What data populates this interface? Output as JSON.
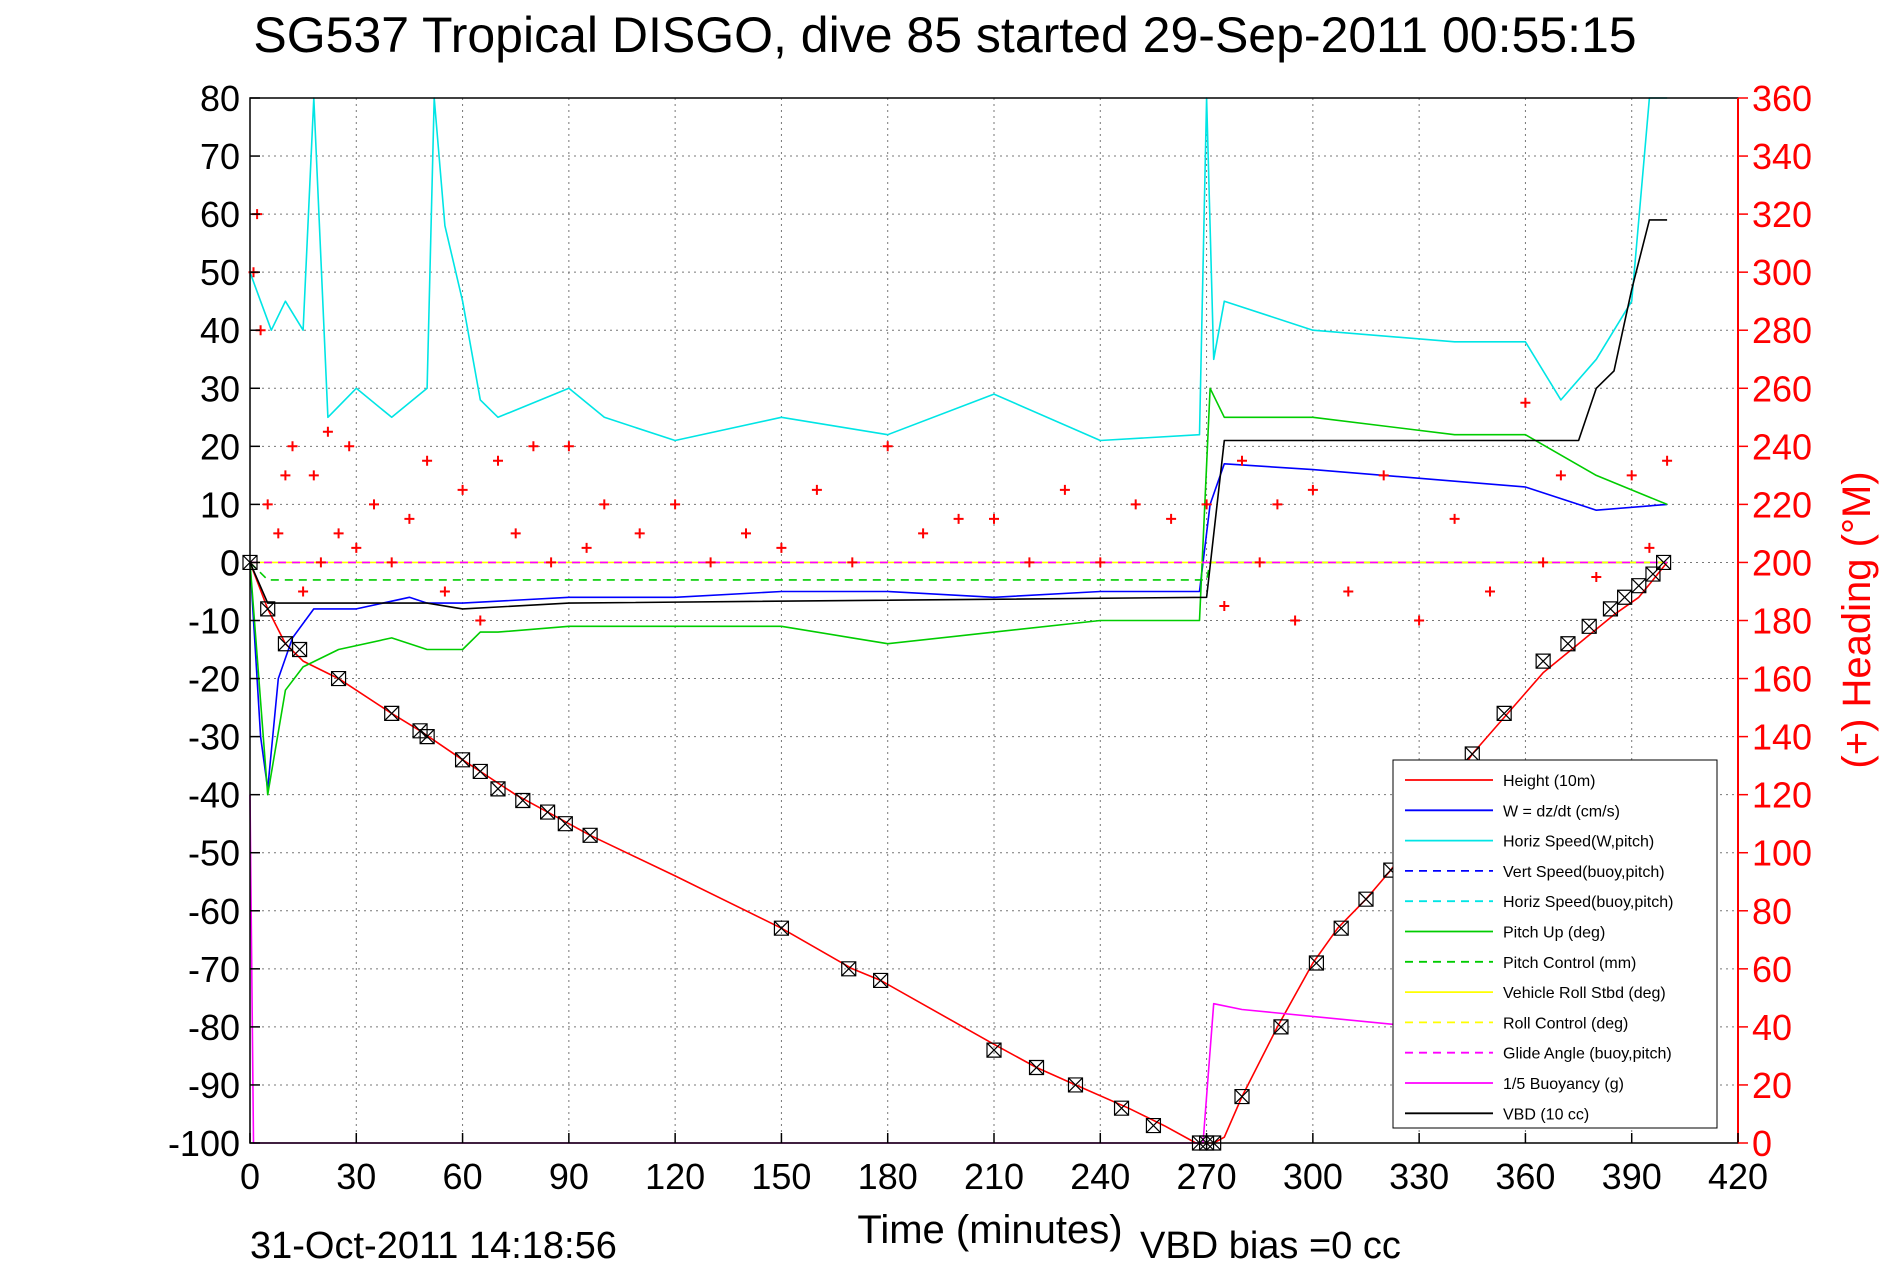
{
  "chart_data": {
    "type": "line",
    "title": "SG537 Tropical DISGO, dive 85 started 29-Sep-2011 00:55:15",
    "xlabel": "Time (minutes)",
    "ylabel": "",
    "y2label": "(+) Heading (°M)",
    "xlim": [
      0,
      420
    ],
    "ylim": [
      -100,
      80
    ],
    "y2lim": [
      0,
      360
    ],
    "x_ticks": [
      0,
      30,
      60,
      90,
      120,
      150,
      180,
      210,
      240,
      270,
      300,
      330,
      360,
      390,
      420
    ],
    "y_ticks": [
      -100,
      -90,
      -80,
      -70,
      -60,
      -50,
      -40,
      -30,
      -20,
      -10,
      0,
      10,
      20,
      30,
      40,
      50,
      60,
      70,
      80
    ],
    "y2_ticks": [
      0,
      20,
      40,
      60,
      80,
      100,
      120,
      140,
      160,
      180,
      200,
      220,
      240,
      260,
      280,
      300,
      320,
      340,
      360
    ],
    "grid": true,
    "legend_position": "bottom-right",
    "footer_date": "31-Oct-2011 14:18:56",
    "footer_note": "VBD bias =0 cc",
    "colors": {
      "axis_right": "#ff0000",
      "height": "#ff0000",
      "w": "#0000ff",
      "horiz": "#00e5e5",
      "pitch": "#00cc00",
      "roll": "#ffff00",
      "glide": "#ff00ff",
      "vbd": "#000000"
    },
    "series": [
      {
        "name": "Height (10m)",
        "color": "#ff0000",
        "style": "solid",
        "x": [
          0,
          5,
          10,
          15,
          25,
          40,
          48,
          60,
          75,
          90,
          96,
          120,
          150,
          170,
          178,
          210,
          222,
          233,
          248,
          258,
          267,
          270,
          272,
          275,
          280,
          290,
          300,
          307,
          315,
          322,
          335,
          345,
          355,
          365,
          375,
          385,
          392,
          396,
          400
        ],
        "y": [
          0,
          -8,
          -14,
          -17,
          -20,
          -26,
          -29,
          -34,
          -40,
          -45,
          -47,
          -54,
          -63,
          -70,
          -72,
          -83,
          -87,
          -90,
          -94,
          -97,
          -100,
          -100,
          -100,
          -99,
          -92,
          -80,
          -69,
          -63,
          -58,
          -53,
          -42,
          -33,
          -26,
          -19,
          -14,
          -9,
          -6,
          -3,
          0
        ]
      },
      {
        "name": "W = dz/dt (cm/s)",
        "color": "#0000ff",
        "style": "solid",
        "x": [
          0,
          3,
          5,
          8,
          12,
          18,
          30,
          45,
          50,
          60,
          90,
          120,
          150,
          180,
          210,
          240,
          268,
          271,
          275,
          300,
          340,
          360,
          380,
          400
        ],
        "y": [
          0,
          -30,
          -39,
          -20,
          -13,
          -8,
          -8,
          -6,
          -7,
          -7,
          -6,
          -6,
          -5,
          -5,
          -6,
          -5,
          -5,
          10,
          17,
          16,
          14,
          13,
          9,
          10
        ]
      },
      {
        "name": "Horiz Speed(W,pitch)",
        "color": "#00e5e5",
        "style": "solid",
        "x": [
          0,
          3,
          6,
          10,
          15,
          18,
          22,
          30,
          40,
          50,
          52,
          55,
          60,
          65,
          70,
          90,
          100,
          120,
          150,
          180,
          210,
          240,
          268,
          270,
          272,
          275,
          300,
          340,
          360,
          370,
          380,
          390,
          395,
          400
        ],
        "y": [
          50,
          45,
          40,
          45,
          40,
          80,
          25,
          30,
          25,
          30,
          80,
          58,
          45,
          28,
          25,
          30,
          25,
          21,
          25,
          22,
          29,
          21,
          22,
          80,
          35,
          45,
          40,
          38,
          38,
          28,
          35,
          45,
          80,
          80
        ]
      },
      {
        "name": "Vert Speed(buoy,pitch)",
        "color": "#0000ff",
        "style": "dashed",
        "x": [
          0,
          400
        ],
        "y": [
          0,
          0
        ]
      },
      {
        "name": "Horiz Speed(buoy,pitch)",
        "color": "#00e5e5",
        "style": "dashed",
        "x": [
          0,
          400
        ],
        "y": [
          0,
          0
        ]
      },
      {
        "name": "Pitch Up (deg)",
        "color": "#00cc00",
        "style": "solid",
        "x": [
          0,
          5,
          10,
          15,
          25,
          40,
          50,
          60,
          65,
          70,
          90,
          120,
          150,
          170,
          180,
          210,
          240,
          268,
          271,
          275,
          300,
          340,
          360,
          380,
          400
        ],
        "y": [
          0,
          -40,
          -22,
          -18,
          -15,
          -13,
          -15,
          -15,
          -12,
          -12,
          -11,
          -11,
          -11,
          -13,
          -14,
          -12,
          -10,
          -10,
          30,
          25,
          25,
          22,
          22,
          15,
          10
        ]
      },
      {
        "name": "Pitch Control (mm)",
        "color": "#00cc00",
        "style": "dashed",
        "x": [
          0,
          5,
          60,
          120,
          270,
          271,
          400
        ],
        "y": [
          0,
          -3,
          -3,
          -3,
          -3,
          0,
          0
        ]
      },
      {
        "name": "Vehicle Roll Stbd (deg)",
        "color": "#ffff00",
        "style": "solid",
        "x": [
          0,
          400
        ],
        "y": [
          0,
          0
        ]
      },
      {
        "name": "Roll Control (deg)",
        "color": "#ffff00",
        "style": "dashed",
        "x": [
          0,
          400
        ],
        "y": [
          0,
          0
        ]
      },
      {
        "name": "Glide Angle (buoy,pitch)",
        "color": "#ff00ff",
        "style": "dashed",
        "x": [
          0,
          400
        ],
        "y": [
          0,
          0
        ]
      },
      {
        "name": "1/5 Buoyancy (g)",
        "color": "#ff00ff",
        "style": "solid",
        "x": [
          0,
          1,
          269,
          272,
          280,
          330,
          332
        ],
        "y": [
          -40,
          -100,
          -100,
          -76,
          -77,
          -80,
          -82
        ]
      },
      {
        "name": "VBD (10 cc)",
        "color": "#000000",
        "style": "solid",
        "x": [
          0,
          5,
          10,
          50,
          60,
          90,
          270,
          275,
          375,
          380,
          385,
          390,
          395,
          400
        ],
        "y": [
          0,
          -7,
          -7,
          -7,
          -8,
          -7,
          -6,
          21,
          21,
          30,
          33,
          47,
          59,
          59
        ]
      }
    ],
    "heading": {
      "name": "Heading",
      "color": "#ff0000",
      "marker": "+",
      "axis": "right",
      "x": [
        1,
        2,
        3,
        5,
        8,
        10,
        12,
        15,
        18,
        20,
        22,
        25,
        28,
        30,
        35,
        40,
        45,
        50,
        55,
        60,
        65,
        70,
        75,
        80,
        85,
        90,
        95,
        100,
        110,
        120,
        130,
        140,
        150,
        160,
        170,
        180,
        190,
        200,
        210,
        220,
        230,
        240,
        250,
        260,
        270,
        275,
        280,
        285,
        290,
        295,
        300,
        310,
        320,
        330,
        340,
        350,
        360,
        365,
        370,
        380,
        390,
        395,
        400
      ],
      "y": [
        300,
        320,
        280,
        220,
        210,
        230,
        240,
        190,
        230,
        200,
        245,
        210,
        240,
        205,
        220,
        200,
        215,
        235,
        190,
        225,
        180,
        235,
        210,
        240,
        200,
        240,
        205,
        220,
        210,
        220,
        200,
        210,
        205,
        225,
        200,
        240,
        210,
        215,
        215,
        200,
        225,
        200,
        220,
        215,
        220,
        185,
        235,
        200,
        220,
        180,
        225,
        190,
        230,
        180,
        215,
        190,
        255,
        200,
        230,
        195,
        230,
        205,
        235
      ]
    },
    "markers": {
      "symbol": "X-box",
      "x": [
        0,
        5,
        10,
        14,
        25,
        40,
        48,
        50,
        60,
        65,
        70,
        77,
        84,
        89,
        96,
        150,
        169,
        178,
        210,
        222,
        233,
        246,
        255,
        268,
        270,
        272,
        280,
        291,
        301,
        308,
        315,
        322,
        345,
        354,
        365,
        372,
        378,
        384,
        388,
        392,
        396,
        399
      ],
      "y": [
        0,
        -8,
        -14,
        -15,
        -20,
        -26,
        -29,
        -30,
        -34,
        -36,
        -39,
        -41,
        -43,
        -45,
        -47,
        -63,
        -70,
        -72,
        -84,
        -87,
        -90,
        -94,
        -97,
        -100,
        -100,
        -100,
        -92,
        -80,
        -69,
        -63,
        -58,
        -53,
        -33,
        -26,
        -17,
        -14,
        -11,
        -8,
        -6,
        -4,
        -2,
        0
      ]
    }
  }
}
